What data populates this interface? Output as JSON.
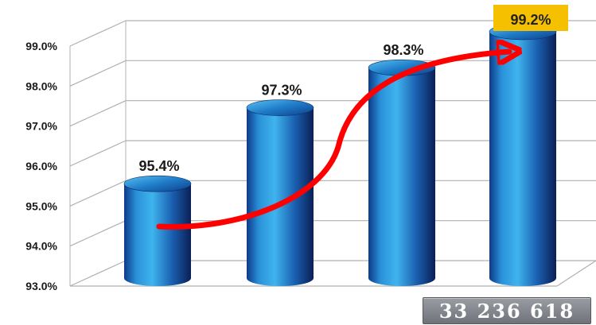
{
  "chart_data": {
    "type": "bar",
    "categories": [
      "",
      "",
      "",
      ""
    ],
    "values": [
      95.4,
      97.3,
      98.3,
      99.2
    ],
    "data_labels": [
      "95.4%",
      "97.3%",
      "98.3%",
      "99.2%"
    ],
    "highlighted_label_index": 3,
    "yticks": [
      "93.0%",
      "94.0%",
      "95.0%",
      "96.0%",
      "97.0%",
      "98.0%",
      "99.0%"
    ],
    "ylim": [
      93,
      99
    ],
    "title": "",
    "xlabel": "",
    "ylabel": "",
    "grid": true,
    "style": "3d-cylinder",
    "colors": {
      "bar_light": "#2f9fe0",
      "bar_dark": "#0b1f55",
      "trend_arrow": "#ff0000",
      "highlight_bg": "#f5c000",
      "grid": "#b0b0b0"
    },
    "annotation": {
      "trend_arrow": "increasing",
      "total_label": "33 236 618"
    }
  }
}
